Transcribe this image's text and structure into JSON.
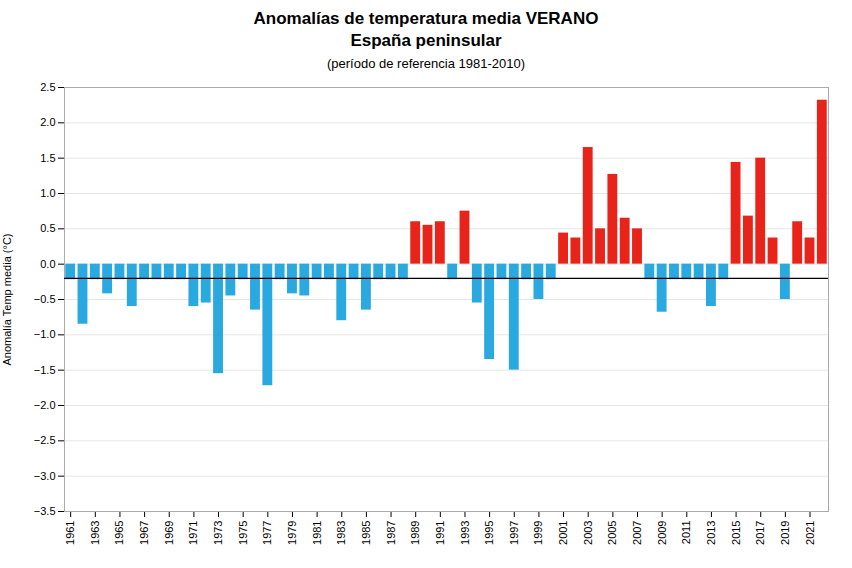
{
  "chart_data": {
    "type": "bar",
    "title": "Anomalías de temperatura media VERANO\nEspaña peninsular",
    "subtitle": "(período de referencia 1981-2010)",
    "ylabel": "Anomalía Temp media (°C)",
    "x": [
      1961,
      1962,
      1963,
      1964,
      1965,
      1966,
      1967,
      1968,
      1969,
      1970,
      1971,
      1972,
      1973,
      1974,
      1975,
      1976,
      1977,
      1978,
      1979,
      1980,
      1981,
      1982,
      1983,
      1984,
      1985,
      1986,
      1987,
      1988,
      1989,
      1990,
      1991,
      1992,
      1993,
      1994,
      1995,
      1996,
      1997,
      1998,
      1999,
      2000,
      2001,
      2002,
      2003,
      2004,
      2005,
      2006,
      2007,
      2008,
      2009,
      2010,
      2011,
      2012,
      2013,
      2014,
      2015,
      2016,
      2017,
      2018,
      2019,
      2020,
      2021,
      2022
    ],
    "values": [
      -0.22,
      -0.85,
      -0.22,
      -0.42,
      -0.22,
      -0.6,
      -0.22,
      -0.22,
      -0.22,
      -0.22,
      -0.6,
      -0.55,
      -1.55,
      -0.45,
      -0.22,
      -0.65,
      -1.72,
      -0.22,
      -0.42,
      -0.45,
      -0.22,
      -0.22,
      -0.8,
      -0.22,
      -0.65,
      -0.22,
      -0.22,
      -0.22,
      0.6,
      0.55,
      0.6,
      -0.22,
      0.75,
      -0.55,
      -1.35,
      -0.22,
      -1.5,
      -0.22,
      -0.5,
      -0.22,
      0.44,
      0.37,
      1.65,
      0.5,
      1.27,
      0.65,
      0.5,
      -0.22,
      -0.68,
      -0.22,
      -0.22,
      -0.22,
      -0.6,
      -0.22,
      1.44,
      0.68,
      1.5,
      0.37,
      -0.5,
      0.6,
      0.37,
      2.32
    ],
    "colors": [
      "#29a9e0",
      "#29a9e0",
      "#29a9e0",
      "#29a9e0",
      "#29a9e0",
      "#29a9e0",
      "#29a9e0",
      "#29a9e0",
      "#29a9e0",
      "#29a9e0",
      "#29a9e0",
      "#29a9e0",
      "#29a9e0",
      "#29a9e0",
      "#29a9e0",
      "#29a9e0",
      "#29a9e0",
      "#29a9e0",
      "#29a9e0",
      "#29a9e0",
      "#29a9e0",
      "#29a9e0",
      "#29a9e0",
      "#29a9e0",
      "#29a9e0",
      "#29a9e0",
      "#29a9e0",
      "#29a9e0",
      "#e8231a",
      "#e8231a",
      "#e8231a",
      "#29a9e0",
      "#e8231a",
      "#29a9e0",
      "#29a9e0",
      "#29a9e0",
      "#29a9e0",
      "#29a9e0",
      "#29a9e0",
      "#29a9e0",
      "#e8231a",
      "#e8231a",
      "#e8231a",
      "#e8231a",
      "#e8231a",
      "#e8231a",
      "#e8231a",
      "#29a9e0",
      "#29a9e0",
      "#29a9e0",
      "#29a9e0",
      "#29a9e0",
      "#29a9e0",
      "#29a9e0",
      "#e8231a",
      "#e8231a",
      "#e8231a",
      "#e8231a",
      "#29a9e0",
      "#e8231a",
      "#e8231a",
      "#e8231a"
    ],
    "reference_line": -0.2,
    "xlim": [
      1960.5,
      2022.5
    ],
    "xticks": [
      1961,
      1963,
      1965,
      1967,
      1969,
      1971,
      1973,
      1975,
      1977,
      1979,
      1981,
      1983,
      1985,
      1987,
      1989,
      1991,
      1993,
      1995,
      1997,
      1999,
      2001,
      2003,
      2005,
      2007,
      2009,
      2011,
      2013,
      2015,
      2017,
      2019,
      2021
    ],
    "ylim": [
      -3.5,
      2.5
    ],
    "yticks": [
      {
        "value": -3.5,
        "label": "−3.5"
      },
      {
        "value": -3.0,
        "label": "−3.0"
      },
      {
        "value": -2.5,
        "label": "−2.5"
      },
      {
        "value": -2.0,
        "label": "−2.0"
      },
      {
        "value": -1.5,
        "label": "−1.5"
      },
      {
        "value": -1.0,
        "label": "−1.0"
      },
      {
        "value": -0.5,
        "label": "−0.5"
      },
      {
        "value": 0.0,
        "label": "0.0"
      },
      {
        "value": 0.5,
        "label": "0.5"
      },
      {
        "value": 1.0,
        "label": "1.0"
      },
      {
        "value": 1.5,
        "label": "1.5"
      },
      {
        "value": 2.0,
        "label": "2.0"
      },
      {
        "value": 2.5,
        "label": "2.5"
      }
    ],
    "grid": true
  }
}
